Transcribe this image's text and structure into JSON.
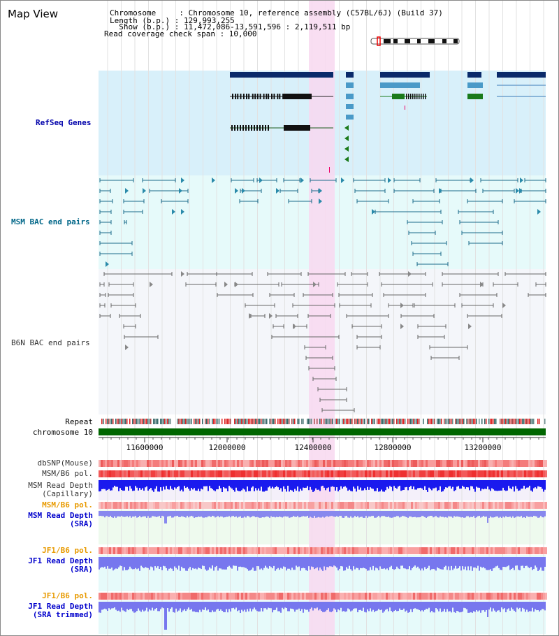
{
  "view_title": "Map View",
  "info": {
    "chromosome_line": "Chromosome     : Chromosome 10, reference assembly (C57BL/6J) (Build 37)",
    "length_line": "Length (b.p.) : 129,993,255",
    "show_line": "  Show (b.p.) : 11,472,086-13,591,596 : 2,119,511 bp",
    "coverage_line": "Read coverage check span : 10,000"
  },
  "tracks": {
    "refseq": "RefSeq Genes",
    "msm_bac": "MSM BAC end pairs",
    "b6n_bac": "B6N BAC end pairs",
    "repeat": "Repeat",
    "chromosome": "chromosome 10",
    "dbsnp": "dbSNP(Mouse)",
    "msm_b6_pol": "MSM/B6 pol.",
    "msm_depth_cap_1": "MSM Read Depth",
    "msm_depth_cap_2": "(Capillary)",
    "msm_b6_pol_2": "MSM/B6 pol.",
    "msm_depth_sra_1": "MSM Read Depth",
    "msm_depth_sra_2": "(SRA)",
    "jf1_b6_pol": "JF1/B6 pol.",
    "jf1_depth_sra_1": "JF1 Read Depth",
    "jf1_depth_sra_2": "(SRA)",
    "jf1_b6_pol_2": "JF1/B6 pol.",
    "jf1_depth_trim_1": "JF1 Read Depth",
    "jf1_depth_trim_2": "(SRA trimmed)"
  },
  "axis_ticks": [
    "11600000",
    "12000000",
    "12400000",
    "12800000",
    "13200000"
  ],
  "colors": {
    "refseq_bg": "#d8f0fa",
    "msm_bg": "#e6fafa",
    "b6n_bg": "#f4f6fa",
    "highlight": "#f8d8f0",
    "refseq_label": "#0000aa",
    "msm_label": "#006688",
    "b6n_label": "#333333",
    "orange_label": "#e89a00",
    "blue_label": "#0000cc",
    "chromosome_bar": "#006600",
    "depth_blue": "#1a1aee",
    "depth_light": "#7777ee"
  }
}
